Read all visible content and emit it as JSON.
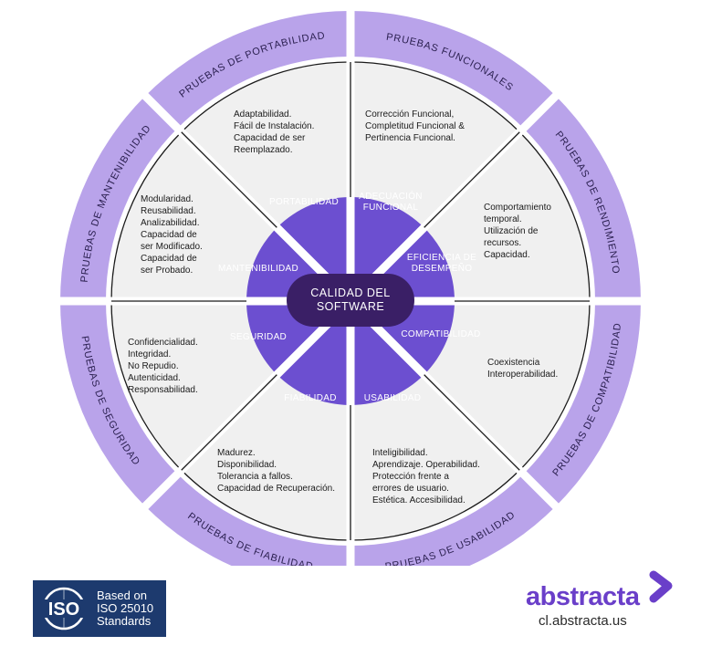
{
  "center": [
    "CALIDAD DEL",
    "SOFTWARE"
  ],
  "segments": [
    {
      "characteristic": "ADECUACIÓN FUNCIONAL",
      "core_lines": [
        "ADECUACIÓN",
        "FUNCIONAL"
      ],
      "attributes": [
        "Corrección Funcional,",
        "Completitud Funcional &",
        "Pertinencia Funcional."
      ],
      "test": "PRUEBAS FUNCIONALES"
    },
    {
      "characteristic": "EFICIENCIA DE DESEMPEÑO",
      "core_lines": [
        "EFICIENCIA DE",
        "DESEMPEÑO"
      ],
      "attributes": [
        "Comportamiento",
        "temporal.",
        "Utilización de",
        "recursos.",
        "Capacidad."
      ],
      "test": "PRUEBAS DE RENDIMIENTO"
    },
    {
      "characteristic": "COMPATIBILIDAD",
      "core_lines": [
        "COMPATIBILIDAD"
      ],
      "attributes": [
        "Coexistencia",
        "Interoperabilidad."
      ],
      "test": "PRUEBAS DE COMPATIBILIDAD"
    },
    {
      "characteristic": "USABILIDAD",
      "core_lines": [
        "USABILIDAD"
      ],
      "attributes": [
        "Inteligibilidad.",
        "Aprendizaje. Operabilidad.",
        "Protección frente a",
        "errores de usuario.",
        "Estética. Accesibilidad."
      ],
      "test": "PRUEBAS DE USABILIDAD"
    },
    {
      "characteristic": "FIABILIDAD",
      "core_lines": [
        "FIABILIDAD"
      ],
      "attributes": [
        "Madurez.",
        "Disponibilidad.",
        "Tolerancia a fallos.",
        "Capacidad de Recuperación."
      ],
      "test": "PRUEBAS DE FIABILIDAD"
    },
    {
      "characteristic": "SEGURIDAD",
      "core_lines": [
        "SEGURIDAD"
      ],
      "attributes": [
        "Confidencialidad.",
        "Integridad.",
        "No Repudio.",
        "Autenticidad.",
        "Responsabilidad."
      ],
      "test": "PRUEBAS DE SEGURIDAD"
    },
    {
      "characteristic": "MANTENIBILIDAD",
      "core_lines": [
        "MANTENIBILIDAD"
      ],
      "attributes": [
        "Modularidad.",
        "Reusabilidad.",
        "Analizabilidad.",
        "Capacidad de",
        "ser Modificado.",
        "Capacidad de",
        "ser Probado."
      ],
      "test": "PRUEBAS DE MANTENIBILIDAD"
    },
    {
      "characteristic": "PORTABILIDAD",
      "core_lines": [
        "PORTABILIDAD"
      ],
      "attributes": [
        "Adaptabilidad.",
        "Fácil de Instalación.",
        "Capacidad de ser",
        "Reemplazado."
      ],
      "test": "PRUEBAS DE PORTABILIDAD"
    }
  ],
  "colors": {
    "outer_ring": "#b9a3ea",
    "outer_edge": "#a68ce0",
    "middle_ring": "#f0f0f0",
    "core": "#6c4fd0",
    "center": "#3a1f66",
    "divider": "#ffffff",
    "brand": "#6a3fc9",
    "iso_blue": "#1d3a6e"
  },
  "iso": {
    "logo_text": "ISO",
    "lines": [
      "Based on",
      "ISO 25010",
      "Standards"
    ]
  },
  "brand": {
    "name": "abstracta",
    "url": "cl.abstracta.us",
    "mark_icon": "abstracta-mark-icon"
  }
}
